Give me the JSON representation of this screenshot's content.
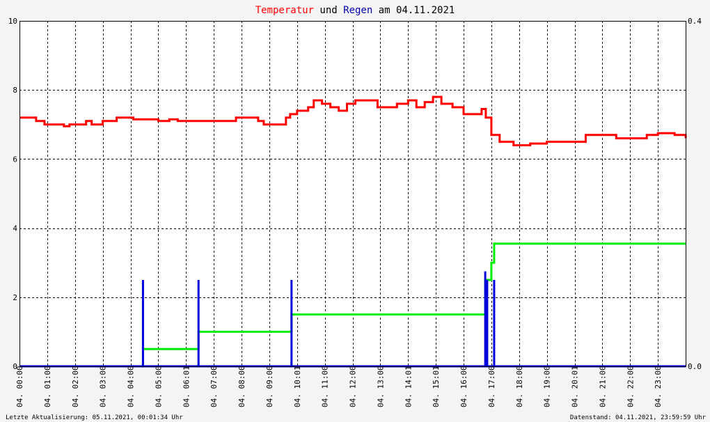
{
  "chart_data": {
    "type": "line",
    "title_parts": [
      {
        "text": "Temperatur",
        "color": "#ff0000"
      },
      {
        "text": " und ",
        "color": "#000000"
      },
      {
        "text": "Regen",
        "color": "#0000aa"
      },
      {
        "text": " am 04.11.2021",
        "color": "#000000"
      }
    ],
    "ylim_left": [
      0,
      10
    ],
    "yticks_left": [
      "0",
      "2",
      "4",
      "6",
      "8",
      "10"
    ],
    "ylim_right": [
      0,
      0.4
    ],
    "yticks_right": [
      "0.0",
      "0.4"
    ],
    "xlim": [
      0,
      24
    ],
    "xtick_hours": [
      0,
      1,
      2,
      3,
      4,
      5,
      6,
      7,
      8,
      9,
      10,
      11,
      12,
      13,
      14,
      15,
      16,
      17,
      18,
      19,
      20,
      21,
      22,
      23
    ],
    "xticks": [
      "04. 00:00",
      "04. 01:00",
      "04. 02:00",
      "04. 03:00",
      "04. 04:00",
      "04. 05:00",
      "04. 06:01",
      "04. 07:00",
      "04. 08:00",
      "04. 09:00",
      "04. 10:01",
      "04. 11:00",
      "04. 12:00",
      "04. 13:00",
      "04. 14:01",
      "04. 15:01",
      "04. 16:00",
      "04. 17:00",
      "04. 18:00",
      "04. 19:00",
      "04. 20:01",
      "04. 21:00",
      "04. 22:00",
      "04. 23:00"
    ],
    "grid": true,
    "series": [
      {
        "color": "#ff0000",
        "axis": "left",
        "x": [
          0,
          0.6,
          0.9,
          1.4,
          1.6,
          1.8,
          2.1,
          2.4,
          2.6,
          2.8,
          3.0,
          3.5,
          4.0,
          4.1,
          4.4,
          4.6,
          5.0,
          5.4,
          5.7,
          6.0,
          6.3,
          6.8,
          7.2,
          7.8,
          8.1,
          8.6,
          8.8,
          9.2,
          9.6,
          9.75,
          10.0,
          10.4,
          10.6,
          10.9,
          11.2,
          11.5,
          11.8,
          12.1,
          12.6,
          12.9,
          13.2,
          13.6,
          14.0,
          14.3,
          14.6,
          14.9,
          15.2,
          15.6,
          16.0,
          16.4,
          16.65,
          16.8,
          17.0,
          17.3,
          17.8,
          18.4,
          19.0,
          19.6,
          20.4,
          21.0,
          21.5,
          22.0,
          22.6,
          23.0,
          23.4,
          23.6,
          24.0
        ],
        "y": [
          7.2,
          7.1,
          7.0,
          7.0,
          6.95,
          7.0,
          7.0,
          7.1,
          7.0,
          7.0,
          7.1,
          7.2,
          7.2,
          7.15,
          7.15,
          7.15,
          7.1,
          7.15,
          7.1,
          7.1,
          7.1,
          7.1,
          7.1,
          7.2,
          7.2,
          7.1,
          7.0,
          7.0,
          7.2,
          7.3,
          7.4,
          7.5,
          7.7,
          7.6,
          7.5,
          7.4,
          7.6,
          7.7,
          7.7,
          7.5,
          7.5,
          7.6,
          7.7,
          7.5,
          7.65,
          7.8,
          7.6,
          7.5,
          7.3,
          7.3,
          7.45,
          7.2,
          6.7,
          6.5,
          6.4,
          6.45,
          6.5,
          6.5,
          6.7,
          6.7,
          6.6,
          6.6,
          6.7,
          6.75,
          6.75,
          6.7,
          6.6
        ]
      },
      {
        "color": "#00ee00",
        "axis": "right",
        "x": [
          4.45,
          6.45,
          6.45,
          9.8,
          9.8,
          16.78,
          16.78,
          17.0,
          17.05,
          17.1,
          24.0
        ],
        "y": [
          0.02,
          0.02,
          0.04,
          0.04,
          0.06,
          0.06,
          0.1,
          0.12,
          0.12,
          0.142,
          0.142
        ]
      },
      {
        "color": "#0000dd",
        "axis": "right",
        "x": [
          0,
          4.45,
          4.45,
          4.45,
          4.45,
          6.45,
          6.45,
          6.45,
          6.45,
          9.8,
          9.8,
          9.8,
          9.8,
          16.78,
          16.78,
          16.78,
          16.85,
          16.85,
          16.85,
          17.1,
          17.1,
          17.1,
          24.0
        ],
        "y": [
          0,
          0,
          0.1,
          0.05,
          0,
          0,
          0.1,
          0.05,
          0,
          0,
          0.1,
          0.05,
          0,
          0,
          0.11,
          0,
          0,
          0.1,
          0,
          0,
          0.1,
          0,
          0
        ]
      }
    ]
  },
  "footer": {
    "left": "Letzte Aktualisierung: 05.11.2021, 00:01:34 Uhr",
    "right": "Datenstand: 04.11.2021, 23:59:59 Uhr"
  }
}
